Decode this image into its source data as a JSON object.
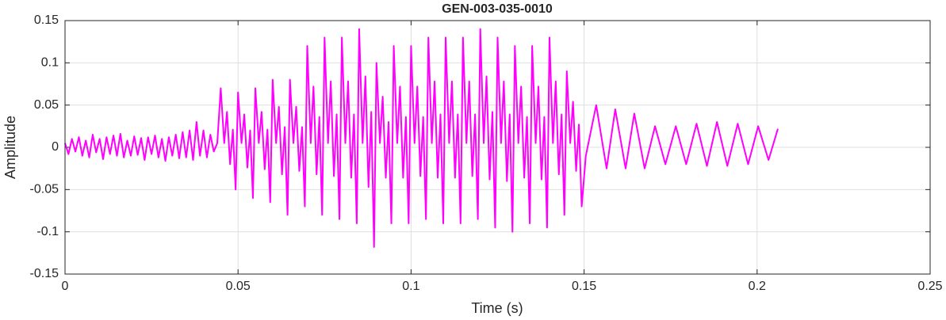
{
  "chart_data": {
    "type": "line",
    "title": "GEN-003-035-0010",
    "x_label": "Time (s)",
    "y_label": "Amplitude",
    "xlim": [
      0,
      0.25
    ],
    "xticks": [
      0,
      0.05,
      0.1,
      0.15,
      0.2,
      0.25
    ],
    "ylim": [
      -0.15,
      0.15
    ],
    "yticks": [
      -0.15,
      -0.1,
      -0.05,
      0,
      0.05,
      0.1,
      0.15
    ],
    "grid": true,
    "x": [
      0,
      0.001,
      0.002,
      0.003,
      0.004,
      0.005,
      0.006,
      0.007,
      0.008,
      0.009,
      0.01,
      0.011,
      0.012,
      0.013,
      0.014,
      0.015,
      0.016,
      0.017,
      0.018,
      0.019,
      0.02,
      0.021,
      0.022,
      0.023,
      0.024,
      0.025,
      0.026,
      0.027,
      0.028,
      0.029,
      0.03,
      0.031,
      0.032,
      0.033,
      0.034,
      0.035,
      0.036,
      0.037,
      0.038,
      0.039,
      0.04,
      0.041,
      0.042,
      0.043,
      0.044,
      0.045,
      0.046,
      0.0468,
      0.0477,
      0.0485,
      0.0493,
      0.05,
      0.051,
      0.0518,
      0.0527,
      0.0535,
      0.0543,
      0.055,
      0.056,
      0.0568,
      0.0577,
      0.0585,
      0.0593,
      0.06,
      0.061,
      0.0618,
      0.0627,
      0.0635,
      0.0643,
      0.065,
      0.066,
      0.0668,
      0.0677,
      0.0685,
      0.0693,
      0.07,
      0.071,
      0.0718,
      0.0727,
      0.0735,
      0.0743,
      0.075,
      0.076,
      0.0768,
      0.0777,
      0.0785,
      0.0793,
      0.08,
      0.081,
      0.0818,
      0.0827,
      0.0835,
      0.0843,
      0.085,
      0.086,
      0.0868,
      0.0877,
      0.0885,
      0.0893,
      0.09,
      0.091,
      0.0918,
      0.0927,
      0.0935,
      0.0943,
      0.095,
      0.096,
      0.0968,
      0.0977,
      0.0985,
      0.0993,
      0.1,
      0.101,
      0.1018,
      0.1027,
      0.1035,
      0.1043,
      0.105,
      0.106,
      0.1068,
      0.1077,
      0.1085,
      0.1093,
      0.11,
      0.111,
      0.1118,
      0.1127,
      0.1135,
      0.1143,
      0.115,
      0.116,
      0.1168,
      0.1177,
      0.1185,
      0.1193,
      0.12,
      0.121,
      0.1218,
      0.1227,
      0.1235,
      0.1243,
      0.125,
      0.126,
      0.1268,
      0.1277,
      0.1285,
      0.1293,
      0.13,
      0.131,
      0.1318,
      0.1327,
      0.1335,
      0.1343,
      0.135,
      0.136,
      0.1368,
      0.1377,
      0.1385,
      0.1393,
      0.14,
      0.141,
      0.1418,
      0.1427,
      0.1435,
      0.1443,
      0.145,
      0.146,
      0.1468,
      0.1477,
      0.1485,
      0.1493,
      0.1505,
      0.1535,
      0.1565,
      0.159,
      0.162,
      0.1645,
      0.1675,
      0.1705,
      0.1735,
      0.1765,
      0.1795,
      0.1825,
      0.1855,
      0.1884,
      0.1914,
      0.1944,
      0.1974,
      0.2003,
      0.2033,
      0.206
    ],
    "series": [
      {
        "color": "#ff00ff",
        "values": [
          0.005,
          -0.008,
          0.01,
          -0.005,
          0.012,
          -0.01,
          0.008,
          -0.012,
          0.015,
          -0.006,
          0.01,
          -0.014,
          0.012,
          -0.008,
          0.014,
          -0.01,
          0.016,
          -0.012,
          0.008,
          -0.01,
          0.013,
          -0.009,
          0.011,
          -0.015,
          0.012,
          -0.008,
          0.014,
          -0.012,
          0.01,
          -0.016,
          0.012,
          -0.01,
          0.015,
          -0.013,
          0.018,
          -0.012,
          0.02,
          -0.015,
          0.03,
          -0.01,
          0.02,
          -0.012,
          0.015,
          -0.005,
          0.005,
          0.07,
          0.005,
          0.042,
          -0.02,
          0.021,
          -0.05,
          0.065,
          0.005,
          0.039,
          -0.024,
          0.02,
          -0.06,
          0.07,
          0.005,
          0.042,
          -0.026,
          0.021,
          -0.065,
          0.08,
          0.005,
          0.048,
          -0.032,
          0.024,
          -0.08,
          0.08,
          0.005,
          0.048,
          -0.028,
          0.024,
          -0.07,
          0.12,
          0.005,
          0.072,
          -0.032,
          0.036,
          -0.08,
          0.13,
          0.005,
          0.078,
          -0.034,
          0.039,
          -0.085,
          0.13,
          0.005,
          0.078,
          -0.036,
          0.039,
          -0.09,
          0.14,
          0.005,
          0.084,
          -0.047,
          0.042,
          -0.118,
          0.1,
          0.005,
          0.06,
          -0.036,
          0.03,
          -0.09,
          0.12,
          0.005,
          0.072,
          -0.036,
          0.036,
          -0.09,
          0.12,
          0.005,
          0.072,
          -0.034,
          0.036,
          -0.085,
          0.13,
          0.005,
          0.078,
          -0.036,
          0.039,
          -0.09,
          0.13,
          0.005,
          0.078,
          -0.036,
          0.039,
          -0.09,
          0.13,
          0.005,
          0.078,
          -0.034,
          0.039,
          -0.085,
          0.14,
          0.005,
          0.084,
          -0.038,
          0.042,
          -0.095,
          0.13,
          0.005,
          0.078,
          -0.04,
          0.039,
          -0.1,
          0.12,
          0.005,
          0.072,
          -0.036,
          0.036,
          -0.09,
          0.12,
          0.005,
          0.072,
          -0.038,
          0.036,
          -0.095,
          0.13,
          0.005,
          0.078,
          -0.032,
          0.039,
          -0.08,
          0.09,
          0.005,
          0.054,
          -0.028,
          0.027,
          -0.07,
          -0.01,
          0.05,
          -0.025,
          0.045,
          -0.025,
          0.04,
          -0.025,
          0.025,
          -0.02,
          0.025,
          -0.02,
          0.028,
          -0.022,
          0.03,
          -0.022,
          0.028,
          -0.02,
          0.025,
          -0.015,
          0.022
        ]
      }
    ]
  }
}
